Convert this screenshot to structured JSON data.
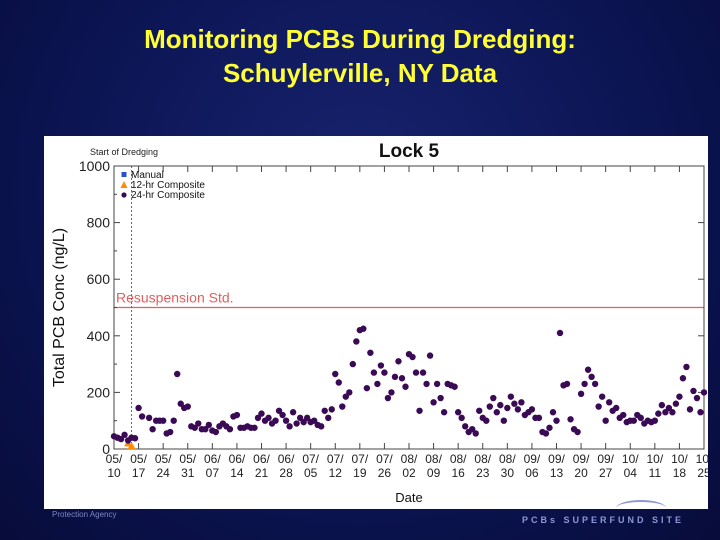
{
  "slide": {
    "title_line1": "Monitoring PCBs During Dredging:",
    "title_line2": "Schuylerville, NY Data",
    "footer_left": "Protection Agency",
    "footer_right": "PCBs SUPERFUND SITE"
  },
  "chart_data": {
    "type": "scatter",
    "title": "Lock 5",
    "xlabel": "Date",
    "ylabel": "Total PCB Conc (ng/L)",
    "ylim": [
      0,
      1000
    ],
    "yticks": [
      0,
      200,
      400,
      600,
      800,
      1000
    ],
    "xlim": [
      "2009-05-10",
      "2009-10-25"
    ],
    "xticks": [
      {
        "date": "2009-05-10",
        "line1": "05/",
        "line2": "10"
      },
      {
        "date": "2009-05-17",
        "line1": "05/",
        "line2": "17"
      },
      {
        "date": "2009-05-24",
        "line1": "05/",
        "line2": "24"
      },
      {
        "date": "2009-05-31",
        "line1": "05/",
        "line2": "31"
      },
      {
        "date": "2009-06-07",
        "line1": "06/",
        "line2": "07"
      },
      {
        "date": "2009-06-14",
        "line1": "06/",
        "line2": "14"
      },
      {
        "date": "2009-06-21",
        "line1": "06/",
        "line2": "21"
      },
      {
        "date": "2009-06-28",
        "line1": "06/",
        "line2": "28"
      },
      {
        "date": "2009-07-05",
        "line1": "07/",
        "line2": "05"
      },
      {
        "date": "2009-07-12",
        "line1": "07/",
        "line2": "12"
      },
      {
        "date": "2009-07-19",
        "line1": "07/",
        "line2": "19"
      },
      {
        "date": "2009-07-26",
        "line1": "07/",
        "line2": "26"
      },
      {
        "date": "2009-08-02",
        "line1": "08/",
        "line2": "02"
      },
      {
        "date": "2009-08-09",
        "line1": "08/",
        "line2": "09"
      },
      {
        "date": "2009-08-16",
        "line1": "08/",
        "line2": "16"
      },
      {
        "date": "2009-08-23",
        "line1": "08/",
        "line2": "23"
      },
      {
        "date": "2009-08-30",
        "line1": "08/",
        "line2": "30"
      },
      {
        "date": "2009-09-06",
        "line1": "09/",
        "line2": "06"
      },
      {
        "date": "2009-09-13",
        "line1": "09/",
        "line2": "13"
      },
      {
        "date": "2009-09-20",
        "line1": "09/",
        "line2": "20"
      },
      {
        "date": "2009-09-27",
        "line1": "09/",
        "line2": "27"
      },
      {
        "date": "2009-10-04",
        "line1": "10/",
        "line2": "04"
      },
      {
        "date": "2009-10-11",
        "line1": "10/",
        "line2": "11"
      },
      {
        "date": "2009-10-18",
        "line1": "10/",
        "line2": "18"
      },
      {
        "date": "2009-10-25",
        "line1": "10/",
        "line2": "25"
      }
    ],
    "grid": false,
    "legend_position": "top-left",
    "reference_lines": [
      {
        "label": "Resuspension Std.",
        "y": 500,
        "color": "#e06060"
      }
    ],
    "event_lines": [
      {
        "label": "Start of Dredging",
        "date": "2009-05-15",
        "color": "#666666"
      }
    ],
    "series": [
      {
        "name": "Manual",
        "color": "#2a4fd0",
        "marker": "square",
        "points": []
      },
      {
        "name": "12-hr Composite",
        "color": "#ff8c00",
        "marker": "triangle",
        "points": [
          [
            "2009-05-14",
            20
          ],
          [
            "2009-05-15",
            10
          ]
        ]
      },
      {
        "name": "24-hr Composite",
        "color": "#3a0a55",
        "marker": "circle",
        "points": [
          [
            "2009-05-10",
            45
          ],
          [
            "2009-05-11",
            40
          ],
          [
            "2009-05-12",
            35
          ],
          [
            "2009-05-13",
            50
          ],
          [
            "2009-05-14",
            30
          ],
          [
            "2009-05-15",
            40
          ],
          [
            "2009-05-16",
            38
          ],
          [
            "2009-05-17",
            145
          ],
          [
            "2009-05-18",
            115
          ],
          [
            "2009-05-20",
            110
          ],
          [
            "2009-05-21",
            70
          ],
          [
            "2009-05-22",
            100
          ],
          [
            "2009-05-23",
            100
          ],
          [
            "2009-05-24",
            100
          ],
          [
            "2009-05-25",
            55
          ],
          [
            "2009-05-26",
            60
          ],
          [
            "2009-05-27",
            100
          ],
          [
            "2009-05-28",
            265
          ],
          [
            "2009-05-29",
            160
          ],
          [
            "2009-05-30",
            145
          ],
          [
            "2009-05-31",
            150
          ],
          [
            "2009-06-01",
            80
          ],
          [
            "2009-06-02",
            75
          ],
          [
            "2009-06-03",
            90
          ],
          [
            "2009-06-04",
            70
          ],
          [
            "2009-06-05",
            70
          ],
          [
            "2009-06-06",
            85
          ],
          [
            "2009-06-07",
            65
          ],
          [
            "2009-06-08",
            60
          ],
          [
            "2009-06-09",
            80
          ],
          [
            "2009-06-10",
            90
          ],
          [
            "2009-06-11",
            80
          ],
          [
            "2009-06-12",
            70
          ],
          [
            "2009-06-13",
            115
          ],
          [
            "2009-06-14",
            120
          ],
          [
            "2009-06-15",
            75
          ],
          [
            "2009-06-16",
            75
          ],
          [
            "2009-06-17",
            80
          ],
          [
            "2009-06-18",
            75
          ],
          [
            "2009-06-19",
            75
          ],
          [
            "2009-06-20",
            110
          ],
          [
            "2009-06-21",
            125
          ],
          [
            "2009-06-22",
            100
          ],
          [
            "2009-06-23",
            110
          ],
          [
            "2009-06-24",
            90
          ],
          [
            "2009-06-25",
            100
          ],
          [
            "2009-06-26",
            135
          ],
          [
            "2009-06-27",
            120
          ],
          [
            "2009-06-28",
            100
          ],
          [
            "2009-06-29",
            80
          ],
          [
            "2009-06-30",
            130
          ],
          [
            "2009-07-01",
            90
          ],
          [
            "2009-07-02",
            110
          ],
          [
            "2009-07-03",
            95
          ],
          [
            "2009-07-04",
            110
          ],
          [
            "2009-07-05",
            95
          ],
          [
            "2009-07-06",
            100
          ],
          [
            "2009-07-07",
            85
          ],
          [
            "2009-07-08",
            80
          ],
          [
            "2009-07-09",
            135
          ],
          [
            "2009-07-10",
            110
          ],
          [
            "2009-07-11",
            140
          ],
          [
            "2009-07-12",
            265
          ],
          [
            "2009-07-13",
            235
          ],
          [
            "2009-07-14",
            150
          ],
          [
            "2009-07-15",
            185
          ],
          [
            "2009-07-16",
            200
          ],
          [
            "2009-07-17",
            300
          ],
          [
            "2009-07-18",
            380
          ],
          [
            "2009-07-19",
            420
          ],
          [
            "2009-07-20",
            425
          ],
          [
            "2009-07-21",
            215
          ],
          [
            "2009-07-22",
            340
          ],
          [
            "2009-07-23",
            270
          ],
          [
            "2009-07-24",
            230
          ],
          [
            "2009-07-25",
            295
          ],
          [
            "2009-07-26",
            270
          ],
          [
            "2009-07-27",
            180
          ],
          [
            "2009-07-28",
            200
          ],
          [
            "2009-07-29",
            255
          ],
          [
            "2009-07-30",
            310
          ],
          [
            "2009-07-31",
            250
          ],
          [
            "2009-08-01",
            220
          ],
          [
            "2009-08-02",
            335
          ],
          [
            "2009-08-03",
            325
          ],
          [
            "2009-08-04",
            270
          ],
          [
            "2009-08-05",
            135
          ],
          [
            "2009-08-06",
            270
          ],
          [
            "2009-08-07",
            230
          ],
          [
            "2009-08-08",
            330
          ],
          [
            "2009-08-09",
            165
          ],
          [
            "2009-08-10",
            230
          ],
          [
            "2009-08-11",
            180
          ],
          [
            "2009-08-12",
            130
          ],
          [
            "2009-08-13",
            230
          ],
          [
            "2009-08-14",
            225
          ],
          [
            "2009-08-15",
            220
          ],
          [
            "2009-08-16",
            130
          ],
          [
            "2009-08-17",
            110
          ],
          [
            "2009-08-18",
            80
          ],
          [
            "2009-08-19",
            60
          ],
          [
            "2009-08-20",
            70
          ],
          [
            "2009-08-21",
            55
          ],
          [
            "2009-08-22",
            135
          ],
          [
            "2009-08-23",
            110
          ],
          [
            "2009-08-24",
            100
          ],
          [
            "2009-08-25",
            150
          ],
          [
            "2009-08-26",
            180
          ],
          [
            "2009-08-27",
            130
          ],
          [
            "2009-08-28",
            155
          ],
          [
            "2009-08-29",
            100
          ],
          [
            "2009-08-30",
            145
          ],
          [
            "2009-08-31",
            185
          ],
          [
            "2009-09-01",
            160
          ],
          [
            "2009-09-02",
            140
          ],
          [
            "2009-09-03",
            165
          ],
          [
            "2009-09-04",
            120
          ],
          [
            "2009-09-05",
            130
          ],
          [
            "2009-09-06",
            140
          ],
          [
            "2009-09-07",
            110
          ],
          [
            "2009-09-08",
            110
          ],
          [
            "2009-09-09",
            60
          ],
          [
            "2009-09-10",
            55
          ],
          [
            "2009-09-11",
            75
          ],
          [
            "2009-09-12",
            130
          ],
          [
            "2009-09-13",
            100
          ],
          [
            "2009-09-14",
            410
          ],
          [
            "2009-09-15",
            225
          ],
          [
            "2009-09-16",
            230
          ],
          [
            "2009-09-17",
            105
          ],
          [
            "2009-09-18",
            70
          ],
          [
            "2009-09-19",
            60
          ],
          [
            "2009-09-20",
            195
          ],
          [
            "2009-09-21",
            230
          ],
          [
            "2009-09-22",
            280
          ],
          [
            "2009-09-23",
            255
          ],
          [
            "2009-09-24",
            230
          ],
          [
            "2009-09-25",
            150
          ],
          [
            "2009-09-26",
            185
          ],
          [
            "2009-09-27",
            100
          ],
          [
            "2009-09-28",
            165
          ],
          [
            "2009-09-29",
            135
          ],
          [
            "2009-09-30",
            145
          ],
          [
            "2009-10-01",
            110
          ],
          [
            "2009-10-02",
            120
          ],
          [
            "2009-10-03",
            95
          ],
          [
            "2009-10-04",
            100
          ],
          [
            "2009-10-05",
            100
          ],
          [
            "2009-10-06",
            120
          ],
          [
            "2009-10-07",
            110
          ],
          [
            "2009-10-08",
            90
          ],
          [
            "2009-10-09",
            100
          ],
          [
            "2009-10-10",
            95
          ],
          [
            "2009-10-11",
            100
          ],
          [
            "2009-10-12",
            125
          ],
          [
            "2009-10-13",
            155
          ],
          [
            "2009-10-14",
            130
          ],
          [
            "2009-10-15",
            145
          ],
          [
            "2009-10-16",
            130
          ],
          [
            "2009-10-17",
            160
          ],
          [
            "2009-10-18",
            185
          ],
          [
            "2009-10-19",
            250
          ],
          [
            "2009-10-20",
            290
          ],
          [
            "2009-10-21",
            140
          ],
          [
            "2009-10-22",
            205
          ],
          [
            "2009-10-23",
            180
          ],
          [
            "2009-10-24",
            130
          ],
          [
            "2009-10-25",
            200
          ]
        ]
      }
    ]
  }
}
